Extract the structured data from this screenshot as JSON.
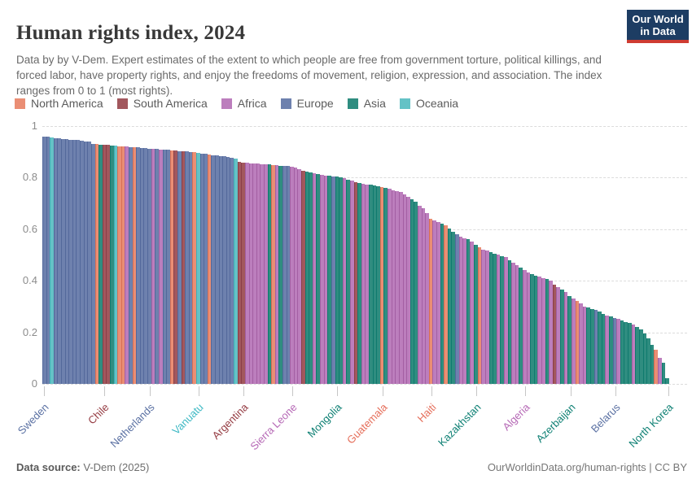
{
  "header": {
    "title": "Human rights index, 2024",
    "subtitle": "Data by by V-Dem. Expert estimates of the extent to which people are free from government torture, political killings, and forced labor, have property rights, and enjoy the freedoms of movement, religion, expression, and association. The index ranges from 0 to 1 (most rights).",
    "logo": {
      "line1": "Our World",
      "line2": "in Data",
      "bg": "#1D3D63",
      "accent": "#CF3C32"
    }
  },
  "continent_colors": {
    "NA": {
      "name": "North America",
      "fill": "#EA8E74",
      "stroke": "#D76F54",
      "label": "#E56E5A"
    },
    "SA": {
      "name": "South America",
      "fill": "#A2575D",
      "stroke": "#8A3E47",
      "label": "#953C43"
    },
    "AF": {
      "name": "Africa",
      "fill": "#BC7EBD",
      "stroke": "#A35FA3",
      "label": "#B669B6"
    },
    "EU": {
      "name": "Europe",
      "fill": "#6E81AE",
      "stroke": "#53689B",
      "label": "#5B71A3"
    },
    "AS": {
      "name": "Asia",
      "fill": "#2F8D80",
      "stroke": "#0F7A6E",
      "label": "#0E8074"
    },
    "OC": {
      "name": "Oceania",
      "fill": "#64C2C6",
      "stroke": "#3FAFB6",
      "label": "#3EB9C4"
    }
  },
  "legend_order": [
    "NA",
    "SA",
    "AF",
    "EU",
    "AS",
    "OC"
  ],
  "chart_data": {
    "type": "bar",
    "title": "Human rights index, 2024",
    "ylabel": "",
    "xlabel": "",
    "ylim": [
      0,
      1
    ],
    "yticks": [
      0,
      0.2,
      0.4,
      0.6,
      0.8,
      1
    ],
    "ytick_labels": [
      "0",
      "0.2",
      "0.4",
      "0.6",
      "0.8",
      "1"
    ],
    "grid": "dashed-horizontal",
    "legend_position": "top",
    "values": [
      0.96,
      0.958,
      0.956,
      0.954,
      0.952,
      0.95,
      0.948,
      0.947,
      0.946,
      0.945,
      0.943,
      0.941,
      0.939,
      0.931,
      0.93,
      0.929,
      0.928,
      0.926,
      0.925,
      0.924,
      0.922,
      0.921,
      0.92,
      0.919,
      0.918,
      0.917,
      0.916,
      0.915,
      0.913,
      0.912,
      0.911,
      0.91,
      0.908,
      0.907,
      0.906,
      0.905,
      0.903,
      0.902,
      0.901,
      0.899,
      0.898,
      0.896,
      0.894,
      0.892,
      0.89,
      0.888,
      0.886,
      0.884,
      0.882,
      0.88,
      0.878,
      0.875,
      0.862,
      0.859,
      0.857,
      0.856,
      0.855,
      0.854,
      0.853,
      0.852,
      0.851,
      0.85,
      0.849,
      0.847,
      0.846,
      0.845,
      0.843,
      0.838,
      0.833,
      0.828,
      0.824,
      0.82,
      0.816,
      0.813,
      0.811,
      0.809,
      0.807,
      0.805,
      0.803,
      0.8,
      0.797,
      0.793,
      0.788,
      0.783,
      0.78,
      0.777,
      0.774,
      0.772,
      0.77,
      0.768,
      0.765,
      0.761,
      0.756,
      0.752,
      0.749,
      0.746,
      0.736,
      0.726,
      0.716,
      0.706,
      0.691,
      0.681,
      0.663,
      0.641,
      0.633,
      0.628,
      0.622,
      0.616,
      0.601,
      0.591,
      0.581,
      0.572,
      0.566,
      0.561,
      0.551,
      0.541,
      0.531,
      0.521,
      0.516,
      0.511,
      0.506,
      0.501,
      0.496,
      0.491,
      0.481,
      0.471,
      0.461,
      0.451,
      0.441,
      0.431,
      0.426,
      0.421,
      0.416,
      0.411,
      0.406,
      0.401,
      0.386,
      0.376,
      0.366,
      0.356,
      0.341,
      0.331,
      0.321,
      0.311,
      0.301,
      0.296,
      0.291,
      0.286,
      0.281,
      0.271,
      0.266,
      0.261,
      0.256,
      0.251,
      0.246,
      0.241,
      0.236,
      0.231,
      0.221,
      0.211,
      0.196,
      0.176,
      0.153,
      0.131,
      0.101,
      0.081,
      0.022
    ],
    "continents": [
      "EU",
      "EU",
      "OC",
      "EU",
      "EU",
      "EU",
      "EU",
      "EU",
      "EU",
      "EU",
      "EU",
      "EU",
      "EU",
      "EU",
      "NA",
      "AS",
      "SA",
      "SA",
      "AS",
      "OC",
      "NA",
      "NA",
      "AF",
      "EU",
      "NA",
      "EU",
      "EU",
      "EU",
      "EU",
      "AF",
      "EU",
      "AF",
      "EU",
      "EU",
      "NA",
      "SA",
      "EU",
      "SA",
      "EU",
      "EU",
      "NA",
      "OC",
      "EU",
      "EU",
      "NA",
      "EU",
      "EU",
      "EU",
      "EU",
      "EU",
      "EU",
      "OC",
      "SA",
      "SA",
      "AF",
      "AF",
      "AF",
      "AF",
      "AF",
      "AF",
      "AS",
      "NA",
      "AF",
      "AS",
      "EU",
      "EU",
      "AF",
      "AF",
      "AF",
      "SA",
      "AS",
      "AS",
      "AF",
      "AS",
      "AF",
      "AF",
      "AS",
      "EU",
      "AS",
      "AS",
      "AF",
      "AS",
      "AF",
      "SA",
      "AS",
      "AF",
      "AF",
      "AS",
      "AS",
      "AS",
      "NA",
      "AS",
      "AF",
      "AF",
      "AF",
      "AF",
      "AF",
      "AF",
      "AS",
      "AS",
      "AF",
      "AF",
      "AF",
      "NA",
      "AF",
      "AF",
      "AS",
      "NA",
      "AS",
      "AS",
      "EU",
      "AF",
      "AF",
      "AS",
      "AF",
      "AS",
      "NA",
      "AF",
      "AF",
      "AS",
      "AS",
      "AF",
      "AS",
      "AF",
      "AS",
      "AF",
      "AF",
      "AS",
      "AF",
      "AF",
      "AS",
      "AS",
      "AF",
      "AF",
      "AS",
      "AF",
      "SA",
      "AF",
      "AS",
      "AF",
      "AS",
      "AF",
      "NA",
      "AF",
      "AF",
      "AS",
      "AS",
      "EU",
      "AS",
      "AS",
      "AF",
      "AS",
      "EU",
      "AF",
      "AS",
      "AS",
      "AS",
      "AF",
      "AS",
      "AS",
      "AS",
      "AS",
      "AS",
      "NA",
      "AF",
      "AS",
      "AS"
    ],
    "labeled_ticks": [
      {
        "index": 1,
        "label": "Sweden"
      },
      {
        "index": 17,
        "label": "Chile"
      },
      {
        "index": 29,
        "label": "Netherlands"
      },
      {
        "index": 42,
        "label": "Vanuatu"
      },
      {
        "index": 54,
        "label": "Argentina"
      },
      {
        "index": 67,
        "label": "Sierra Leone"
      },
      {
        "index": 79,
        "label": "Mongolia"
      },
      {
        "index": 91,
        "label": "Guatemala"
      },
      {
        "index": 104,
        "label": "Haiti"
      },
      {
        "index": 116,
        "label": "Kazakhstan"
      },
      {
        "index": 129,
        "label": "Algeria"
      },
      {
        "index": 141,
        "label": "Azerbaijan"
      },
      {
        "index": 153,
        "label": "Belarus"
      },
      {
        "index": 167,
        "label": "North Korea"
      }
    ]
  },
  "footer": {
    "source_label": "Data source:",
    "source_value": " V-Dem (2025)",
    "right_text": "OurWorldinData.org/human-rights | CC BY"
  }
}
